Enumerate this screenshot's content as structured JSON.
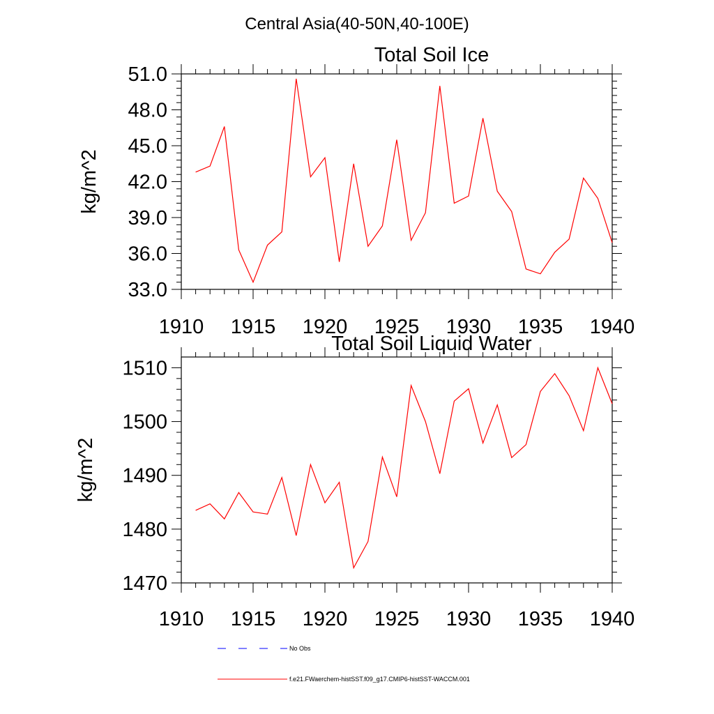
{
  "figure_title": "Central Asia(40-50N,40-100E)",
  "legend": {
    "entries": [
      {
        "label": "No Obs",
        "color": "#0000ff",
        "dash": "12,18"
      },
      {
        "label": "f.e21.FWaerchem-histSST.f09_g17.CMIP6-histSST-WACCM.001",
        "color": "#ff0000",
        "dash": ""
      }
    ]
  },
  "chart_data": [
    {
      "type": "line",
      "title": "Total Soil Ice",
      "xlabel": "",
      "ylabel": "kg/m^2",
      "xlim": [
        1910,
        1940
      ],
      "ylim": [
        33.0,
        51.0
      ],
      "xticks": [
        1910,
        1915,
        1920,
        1925,
        1930,
        1935,
        1940
      ],
      "yticks": [
        33.0,
        36.0,
        39.0,
        42.0,
        45.0,
        48.0,
        51.0
      ],
      "ytick_labels": [
        "33.0",
        "36.0",
        "39.0",
        "42.0",
        "45.0",
        "48.0",
        "51.0"
      ],
      "grid": false,
      "series": [
        {
          "color": "#ff0000",
          "x": [
            1911,
            1912,
            1913,
            1914,
            1915,
            1916,
            1917,
            1918,
            1919,
            1920,
            1921,
            1922,
            1923,
            1924,
            1925,
            1926,
            1927,
            1928,
            1929,
            1930,
            1931,
            1932,
            1933,
            1934,
            1935,
            1936,
            1937,
            1938,
            1939,
            1940
          ],
          "values": [
            42.8,
            43.3,
            46.6,
            36.3,
            33.6,
            36.7,
            37.8,
            50.6,
            42.4,
            44.0,
            35.3,
            43.5,
            36.6,
            38.3,
            45.5,
            37.1,
            39.4,
            50.0,
            40.2,
            40.8,
            47.3,
            41.2,
            39.5,
            34.7,
            34.3,
            36.1,
            37.2,
            42.3,
            40.6,
            36.9
          ]
        }
      ]
    },
    {
      "type": "line",
      "title": "Total Soil Liquid Water",
      "xlabel": "",
      "ylabel": "kg/m^2",
      "xlim": [
        1910,
        1940
      ],
      "ylim": [
        1470,
        1512
      ],
      "xticks": [
        1910,
        1915,
        1920,
        1925,
        1930,
        1935,
        1940
      ],
      "yticks": [
        1470,
        1480,
        1490,
        1500,
        1510
      ],
      "ytick_labels": [
        "1470",
        "1480",
        "1490",
        "1500",
        "1510"
      ],
      "grid": false,
      "series": [
        {
          "color": "#ff0000",
          "x": [
            1911,
            1912,
            1913,
            1914,
            1915,
            1916,
            1917,
            1918,
            1919,
            1920,
            1921,
            1922,
            1923,
            1924,
            1925,
            1926,
            1927,
            1928,
            1929,
            1930,
            1931,
            1932,
            1933,
            1934,
            1935,
            1936,
            1937,
            1938,
            1939,
            1940
          ],
          "values": [
            1483.5,
            1484.7,
            1481.9,
            1486.8,
            1483.2,
            1482.8,
            1489.6,
            1478.8,
            1492.0,
            1484.9,
            1488.7,
            1472.8,
            1477.7,
            1493.4,
            1486.0,
            1506.7,
            1500.0,
            1490.3,
            1503.8,
            1506.1,
            1496.0,
            1503.1,
            1493.3,
            1495.7,
            1505.6,
            1508.9,
            1504.8,
            1498.3,
            1510.0,
            1503.3
          ]
        }
      ]
    }
  ]
}
